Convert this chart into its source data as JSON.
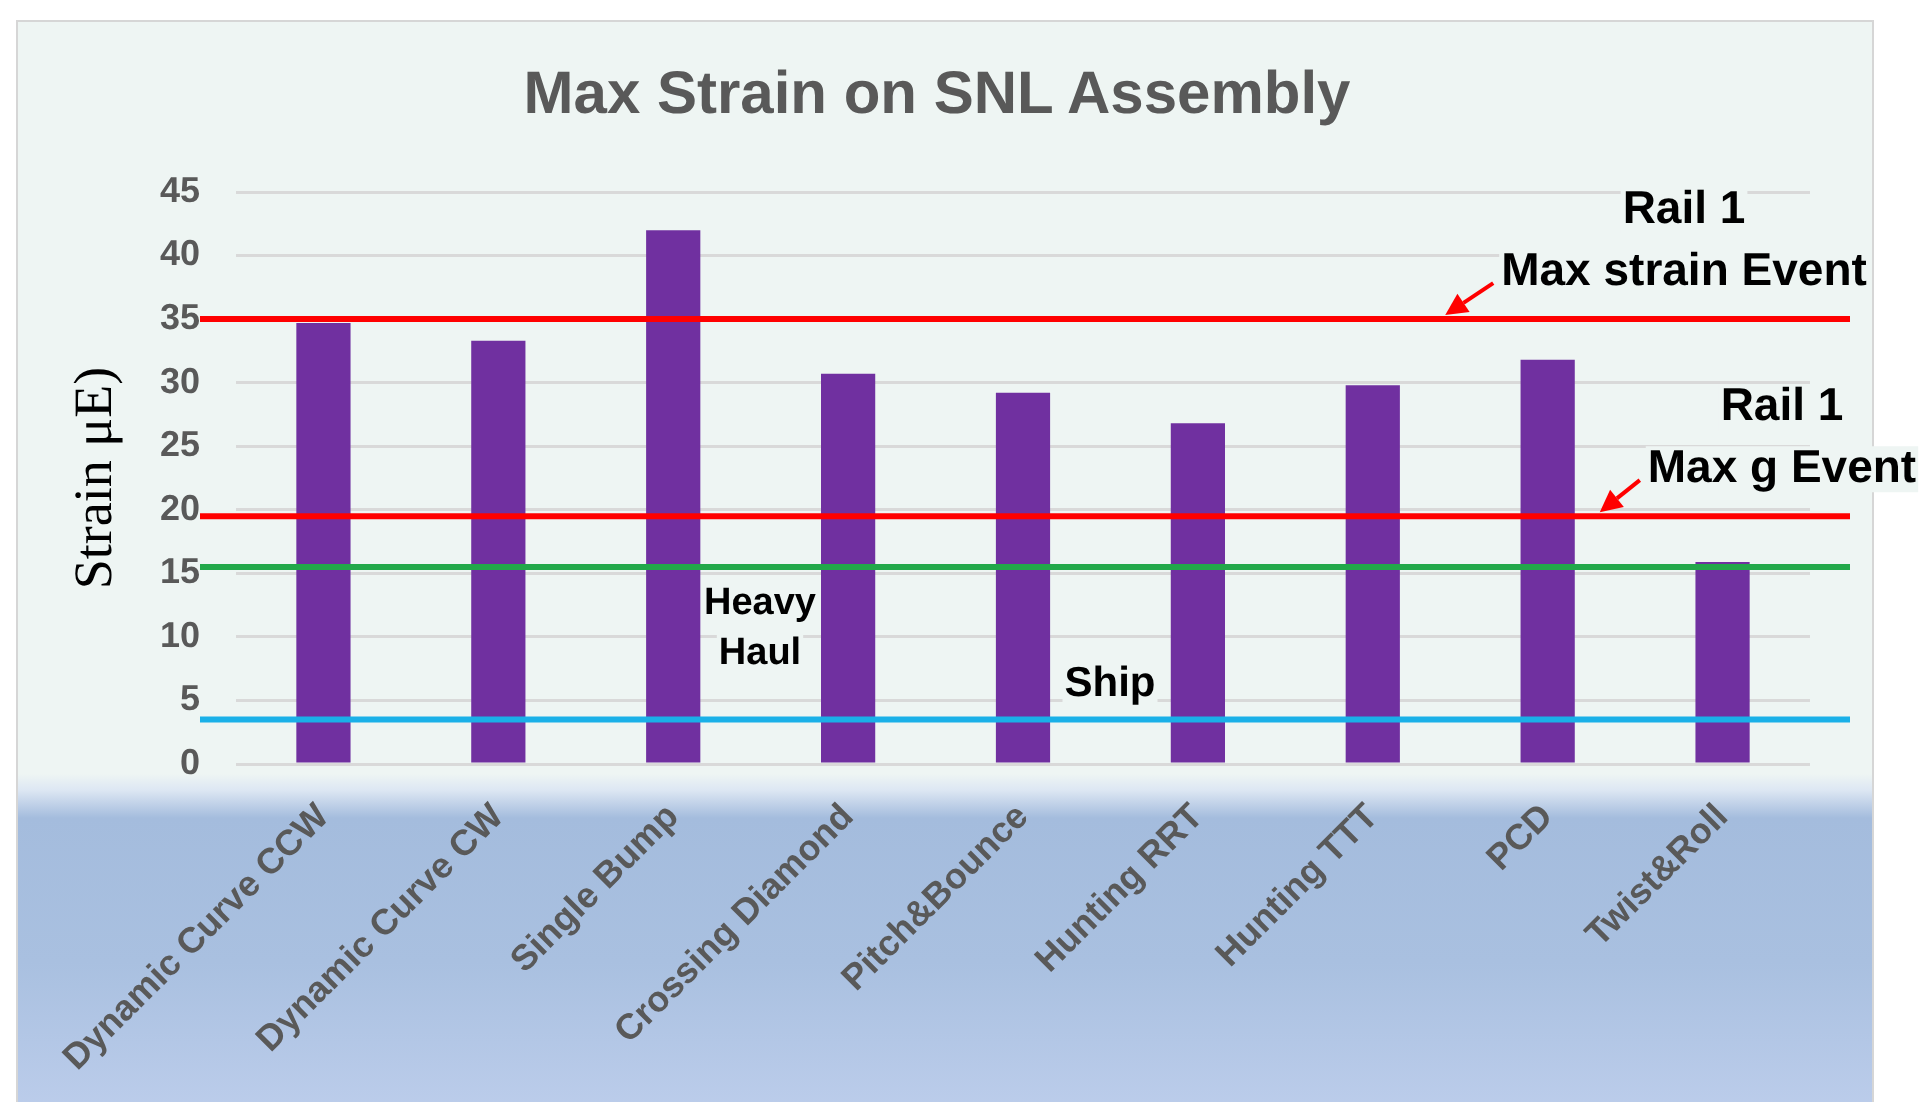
{
  "chart_data": {
    "type": "bar",
    "title": "Max Strain on SNL Assembly",
    "ylabel": "Strain μE)",
    "categories": [
      "Dynamic Curve CCW",
      "Dynamic Curve CW",
      "Single Bump",
      "Crossing Diamond",
      "Pitch&Bounce",
      "Hunting RRT",
      "Hunting TTT",
      "PCD",
      "Twist&Roll"
    ],
    "values": [
      34.7,
      33.3,
      42.0,
      30.7,
      29.2,
      26.8,
      29.8,
      31.8,
      15.9
    ],
    "color": "#7030a0",
    "ylim": [
      0,
      45
    ],
    "yticks": [
      0,
      5,
      10,
      15,
      20,
      25,
      30,
      35,
      40,
      45
    ],
    "grid": "y",
    "ref_lines": [
      {
        "axis": "y",
        "value": 35,
        "label": "Rail 1\nMax strain Event",
        "color": "#ff0000"
      },
      {
        "axis": "y",
        "value": 19.5,
        "label": "Rail 1\nMax g Event",
        "color": "#ff0000"
      },
      {
        "axis": "y",
        "value": 15.5,
        "label": "Heavy\nHaul",
        "color": "#22a84a"
      },
      {
        "axis": "y",
        "value": 3.5,
        "label": "Ship",
        "color": "#1ab0e8"
      }
    ]
  }
}
